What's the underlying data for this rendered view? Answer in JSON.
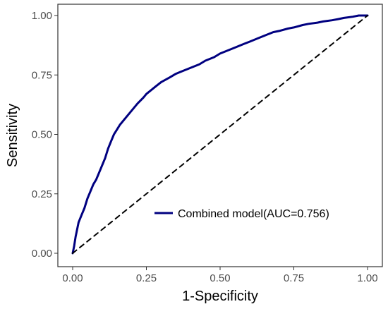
{
  "chart_data": {
    "type": "line",
    "xlabel": "1-Specificity",
    "ylabel": "Sensitivity",
    "xlim": [
      0,
      1
    ],
    "ylim": [
      0,
      1
    ],
    "x_ticks": [
      "0.00",
      "0.25",
      "0.50",
      "0.75",
      "1.00"
    ],
    "y_ticks": [
      "0.00",
      "0.25",
      "0.50",
      "0.75",
      "1.00"
    ],
    "grid": false,
    "legend_position": "inside-bottom-right",
    "series": [
      {
        "name": "Combined model(AUC=0.756)",
        "color": "#000080",
        "style": "solid",
        "x": [
          0.0,
          0.005,
          0.01,
          0.015,
          0.02,
          0.03,
          0.04,
          0.05,
          0.06,
          0.07,
          0.08,
          0.09,
          0.1,
          0.11,
          0.12,
          0.13,
          0.14,
          0.15,
          0.16,
          0.18,
          0.2,
          0.22,
          0.24,
          0.25,
          0.28,
          0.3,
          0.33,
          0.35,
          0.38,
          0.4,
          0.43,
          0.45,
          0.48,
          0.5,
          0.53,
          0.55,
          0.58,
          0.6,
          0.63,
          0.65,
          0.68,
          0.7,
          0.73,
          0.75,
          0.78,
          0.8,
          0.83,
          0.85,
          0.88,
          0.9,
          0.92,
          0.95,
          0.97,
          0.99,
          1.0
        ],
        "y": [
          0.0,
          0.03,
          0.07,
          0.1,
          0.13,
          0.16,
          0.19,
          0.23,
          0.26,
          0.29,
          0.31,
          0.34,
          0.37,
          0.4,
          0.44,
          0.47,
          0.5,
          0.52,
          0.54,
          0.57,
          0.6,
          0.63,
          0.655,
          0.67,
          0.7,
          0.72,
          0.74,
          0.755,
          0.77,
          0.78,
          0.795,
          0.81,
          0.825,
          0.84,
          0.855,
          0.865,
          0.88,
          0.89,
          0.905,
          0.915,
          0.93,
          0.935,
          0.945,
          0.95,
          0.96,
          0.965,
          0.97,
          0.975,
          0.98,
          0.985,
          0.99,
          0.995,
          1.0,
          1.0,
          1.0
        ]
      },
      {
        "name": "",
        "color": "#000000",
        "style": "dashed",
        "x": [
          0,
          1
        ],
        "y": [
          0,
          1
        ]
      }
    ]
  }
}
